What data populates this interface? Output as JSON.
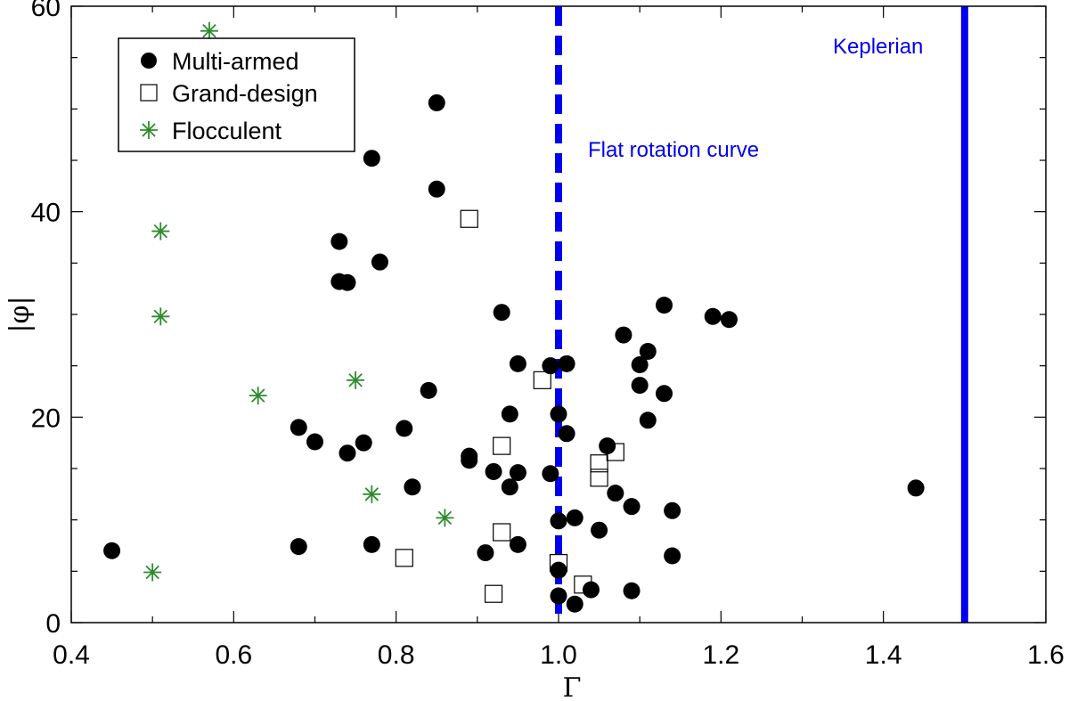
{
  "chart_data": {
    "type": "scatter",
    "xlabel": "Γ",
    "ylabel": "|φ|",
    "xlim": [
      0.4,
      1.6
    ],
    "ylim": [
      0,
      60
    ],
    "xticks": [
      0.4,
      0.6,
      0.8,
      1.0,
      1.2,
      1.4,
      1.6
    ],
    "xtick_labels": [
      "0.4",
      "0.6",
      "0.8",
      "1.0",
      "1.2",
      "1.4",
      "1.6"
    ],
    "yticks": [
      0,
      20,
      40,
      60
    ],
    "ytick_labels": [
      "0",
      "20",
      "40",
      "60"
    ],
    "legend_position": "top-left",
    "colors": {
      "axis": "#000000",
      "flocculent": "#2e8b2e",
      "reference_lines": "#0000ee"
    },
    "series": [
      {
        "name": "Multi-armed",
        "marker": "filled-circle",
        "points": [
          [
            0.45,
            7.0
          ],
          [
            0.68,
            19.0
          ],
          [
            0.68,
            7.4
          ],
          [
            0.7,
            17.6
          ],
          [
            0.73,
            37.1
          ],
          [
            0.73,
            33.2
          ],
          [
            0.74,
            33.1
          ],
          [
            0.74,
            16.5
          ],
          [
            0.76,
            17.5
          ],
          [
            0.77,
            45.2
          ],
          [
            0.77,
            7.6
          ],
          [
            0.78,
            35.1
          ],
          [
            0.81,
            18.9
          ],
          [
            0.82,
            13.2
          ],
          [
            0.84,
            22.6
          ],
          [
            0.85,
            50.6
          ],
          [
            0.85,
            42.2
          ],
          [
            0.89,
            16.2
          ],
          [
            0.89,
            15.8
          ],
          [
            0.91,
            6.8
          ],
          [
            0.92,
            14.7
          ],
          [
            0.93,
            30.2
          ],
          [
            0.94,
            20.3
          ],
          [
            0.94,
            13.2
          ],
          [
            0.95,
            25.2
          ],
          [
            0.95,
            14.6
          ],
          [
            0.95,
            7.6
          ],
          [
            0.99,
            25.0
          ],
          [
            0.99,
            14.5
          ],
          [
            1.0,
            20.3
          ],
          [
            1.0,
            9.9
          ],
          [
            1.0,
            5.1
          ],
          [
            1.0,
            2.6
          ],
          [
            1.01,
            18.4
          ],
          [
            1.01,
            25.2
          ],
          [
            1.02,
            10.2
          ],
          [
            1.02,
            1.8
          ],
          [
            1.04,
            3.2
          ],
          [
            1.05,
            9.0
          ],
          [
            1.06,
            17.2
          ],
          [
            1.07,
            12.6
          ],
          [
            1.08,
            28.0
          ],
          [
            1.09,
            11.3
          ],
          [
            1.09,
            3.1
          ],
          [
            1.1,
            25.1
          ],
          [
            1.1,
            23.1
          ],
          [
            1.11,
            26.4
          ],
          [
            1.11,
            19.7
          ],
          [
            1.13,
            30.9
          ],
          [
            1.13,
            22.3
          ],
          [
            1.14,
            10.9
          ],
          [
            1.14,
            6.5
          ],
          [
            1.19,
            29.8
          ],
          [
            1.21,
            29.5
          ],
          [
            1.44,
            13.1
          ]
        ]
      },
      {
        "name": "Grand-design",
        "marker": "open-square",
        "points": [
          [
            0.81,
            6.3
          ],
          [
            0.89,
            39.3
          ],
          [
            0.92,
            2.8
          ],
          [
            0.93,
            17.2
          ],
          [
            0.93,
            8.8
          ],
          [
            0.98,
            23.6
          ],
          [
            1.0,
            5.8
          ],
          [
            1.03,
            3.7
          ],
          [
            1.05,
            15.5
          ],
          [
            1.05,
            14.1
          ],
          [
            1.07,
            16.6
          ]
        ]
      },
      {
        "name": "Flocculent",
        "marker": "asterisk",
        "points": [
          [
            0.5,
            4.9
          ],
          [
            0.51,
            38.1
          ],
          [
            0.51,
            29.8
          ],
          [
            0.57,
            57.6
          ],
          [
            0.63,
            22.1
          ],
          [
            0.75,
            23.6
          ],
          [
            0.77,
            12.5
          ],
          [
            0.86,
            10.2
          ]
        ]
      }
    ],
    "reference_lines": [
      {
        "x": 1.0,
        "style": "dashed",
        "label": "Flat rotation curve"
      },
      {
        "x": 1.5,
        "style": "solid",
        "label": "Keplerian"
      }
    ]
  }
}
